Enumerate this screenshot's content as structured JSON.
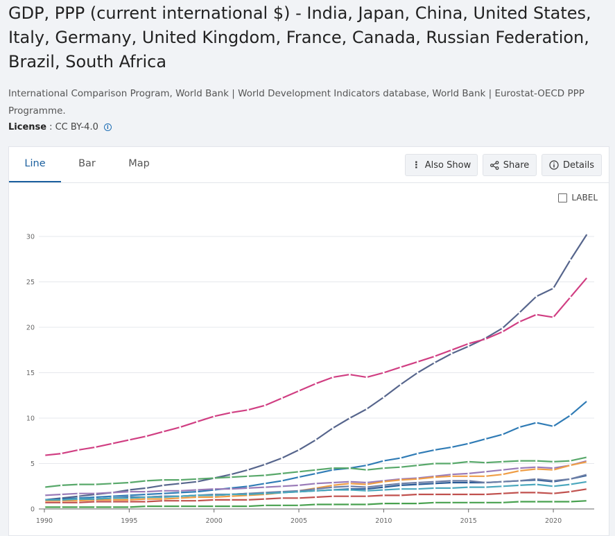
{
  "title": "GDP, PPP (current international $) - India, Japan, China, United States, Italy, Germany, United Kingdom, France, Canada, Russian Federation, Brazil, South Africa",
  "source": "International Comparison Program, World Bank | World Development Indicators database, World Bank | Eurostat-OECD PPP Programme.",
  "license": {
    "label": "License",
    "value": ": CC BY-4.0"
  },
  "tabs": [
    "Line",
    "Bar",
    "Map"
  ],
  "buttons": {
    "also_show": "Also Show",
    "share": "Share",
    "details": "Details"
  },
  "label_toggle": "LABEL",
  "chart_data": {
    "type": "line",
    "title": "",
    "xlabel": "",
    "ylabel": "",
    "xlim": [
      1990,
      2022
    ],
    "ylim": [
      0,
      30
    ],
    "x_ticks": [
      1990,
      1995,
      2000,
      2005,
      2010,
      2015,
      2020
    ],
    "y_ticks": [
      0,
      5,
      10,
      15,
      20,
      25,
      30
    ],
    "grid": "horizontal",
    "x": [
      1990,
      1991,
      1992,
      1993,
      1994,
      1995,
      1996,
      1997,
      1998,
      1999,
      2000,
      2001,
      2002,
      2003,
      2004,
      2005,
      2006,
      2007,
      2008,
      2009,
      2010,
      2011,
      2012,
      2013,
      2014,
      2015,
      2016,
      2017,
      2018,
      2019,
      2020,
      2021,
      2022
    ],
    "series": [
      {
        "color": "#56658c",
        "values": [
          1.0,
          1.2,
          1.4,
          1.6,
          1.8,
          2.1,
          2.3,
          2.6,
          2.8,
          3.0,
          3.4,
          3.8,
          4.3,
          4.9,
          5.6,
          6.5,
          7.6,
          8.9,
          10.0,
          11.0,
          12.3,
          13.7,
          15.0,
          16.1,
          17.1,
          17.9,
          18.8,
          19.9,
          21.6,
          23.4,
          24.3,
          27.4,
          30.3
        ]
      },
      {
        "color": "#d03e82",
        "values": [
          5.9,
          6.1,
          6.5,
          6.8,
          7.2,
          7.6,
          8.0,
          8.5,
          9.0,
          9.6,
          10.2,
          10.6,
          10.9,
          11.4,
          12.2,
          13.0,
          13.8,
          14.5,
          14.8,
          14.5,
          15.0,
          15.6,
          16.2,
          16.8,
          17.5,
          18.2,
          18.7,
          19.5,
          20.6,
          21.4,
          21.1,
          23.3,
          25.5
        ]
      },
      {
        "color": "#2f7bb5",
        "values": [
          1.0,
          1.1,
          1.2,
          1.3,
          1.4,
          1.5,
          1.6,
          1.7,
          1.8,
          1.9,
          2.1,
          2.3,
          2.5,
          2.8,
          3.1,
          3.5,
          3.9,
          4.3,
          4.5,
          4.8,
          5.3,
          5.6,
          6.1,
          6.5,
          6.8,
          7.2,
          7.7,
          8.2,
          9.0,
          9.5,
          9.1,
          10.3,
          11.9
        ]
      },
      {
        "color": "#58a86a",
        "values": [
          2.4,
          2.6,
          2.7,
          2.7,
          2.8,
          2.9,
          3.1,
          3.2,
          3.2,
          3.3,
          3.4,
          3.5,
          3.6,
          3.7,
          3.9,
          4.1,
          4.3,
          4.5,
          4.5,
          4.3,
          4.5,
          4.6,
          4.8,
          5.0,
          5.0,
          5.2,
          5.1,
          5.2,
          5.3,
          5.3,
          5.2,
          5.3,
          5.7
        ]
      },
      {
        "color": "#9a7bb8",
        "values": [
          1.5,
          1.6,
          1.7,
          1.7,
          1.8,
          1.9,
          1.9,
          2.0,
          2.0,
          2.1,
          2.2,
          2.2,
          2.3,
          2.4,
          2.5,
          2.6,
          2.8,
          2.9,
          3.0,
          2.9,
          3.1,
          3.3,
          3.4,
          3.6,
          3.8,
          3.9,
          4.1,
          4.3,
          4.5,
          4.6,
          4.5,
          4.8,
          5.3
        ]
      },
      {
        "color": "#ef9d45",
        "values": [
          0.9,
          0.9,
          0.9,
          1.0,
          1.0,
          1.0,
          1.1,
          1.1,
          1.2,
          1.3,
          1.3,
          1.4,
          1.5,
          1.6,
          1.8,
          2.0,
          2.3,
          2.6,
          2.8,
          2.7,
          3.0,
          3.2,
          3.3,
          3.5,
          3.6,
          3.6,
          3.6,
          3.8,
          4.2,
          4.4,
          4.3,
          4.8,
          5.2
        ]
      },
      {
        "color": "#2a5b96",
        "values": [
          1.0,
          1.1,
          1.1,
          1.1,
          1.2,
          1.3,
          1.3,
          1.4,
          1.4,
          1.5,
          1.5,
          1.6,
          1.7,
          1.7,
          1.8,
          1.9,
          2.0,
          2.1,
          2.2,
          2.2,
          2.4,
          2.6,
          2.7,
          2.8,
          2.9,
          2.9,
          2.9,
          3.0,
          3.1,
          3.2,
          3.0,
          3.3,
          3.7
        ]
      },
      {
        "color": "#6e7fa6",
        "values": [
          1.0,
          1.0,
          1.1,
          1.1,
          1.2,
          1.2,
          1.3,
          1.4,
          1.4,
          1.5,
          1.6,
          1.6,
          1.7,
          1.8,
          1.9,
          2.0,
          2.2,
          2.4,
          2.5,
          2.4,
          2.6,
          2.8,
          2.9,
          3.0,
          3.1,
          3.1,
          2.9,
          3.0,
          3.1,
          3.3,
          3.1,
          3.3,
          3.8
        ]
      },
      {
        "color": "#4aa7bd",
        "values": [
          1.0,
          1.0,
          1.1,
          1.1,
          1.2,
          1.2,
          1.3,
          1.3,
          1.4,
          1.5,
          1.5,
          1.6,
          1.6,
          1.7,
          1.8,
          1.9,
          2.0,
          2.1,
          2.1,
          2.0,
          2.1,
          2.2,
          2.2,
          2.3,
          2.3,
          2.4,
          2.4,
          2.5,
          2.6,
          2.7,
          2.5,
          2.7,
          3.0
        ]
      },
      {
        "color": "#c0504d",
        "values": [
          0.7,
          0.7,
          0.7,
          0.8,
          0.8,
          0.8,
          0.8,
          0.9,
          0.9,
          0.9,
          1.0,
          1.0,
          1.0,
          1.1,
          1.2,
          1.2,
          1.3,
          1.4,
          1.4,
          1.4,
          1.5,
          1.5,
          1.6,
          1.6,
          1.6,
          1.6,
          1.6,
          1.7,
          1.8,
          1.8,
          1.7,
          1.9,
          2.2
        ]
      },
      {
        "color": "#47a04e",
        "values": [
          0.2,
          0.2,
          0.2,
          0.2,
          0.2,
          0.2,
          0.3,
          0.3,
          0.3,
          0.3,
          0.3,
          0.3,
          0.3,
          0.4,
          0.4,
          0.4,
          0.5,
          0.5,
          0.5,
          0.5,
          0.6,
          0.6,
          0.6,
          0.7,
          0.7,
          0.7,
          0.7,
          0.7,
          0.8,
          0.8,
          0.8,
          0.8,
          0.9
        ]
      }
    ]
  }
}
